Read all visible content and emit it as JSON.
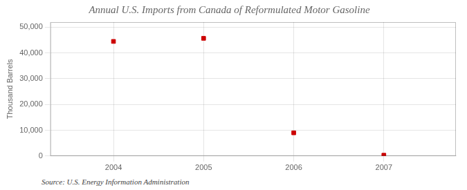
{
  "chart_data": {
    "type": "scatter",
    "title": "Annual U.S. Imports from Canada of Reformulated Motor Gasoline",
    "ylabel": "Thousand Barrels",
    "annotations": [
      "Source: U.S. Energy Information Administration"
    ],
    "x": [
      2004,
      2005,
      2006,
      2007
    ],
    "values": [
      44500,
      45700,
      9000,
      300
    ],
    "color": "#cc0000",
    "marker": "square",
    "xlim": [
      2003.3,
      2007.8
    ],
    "xticks": [
      2004,
      2005,
      2006,
      2007
    ],
    "ylim": [
      0,
      52000
    ],
    "yticks": [
      0,
      {
        "value": 10000,
        "label": "10,000"
      },
      {
        "value": 20000,
        "label": "20,000"
      },
      {
        "value": 30000,
        "label": "30,000"
      },
      {
        "value": 40000,
        "label": "40,000"
      },
      {
        "value": 50000,
        "label": "50,000"
      }
    ],
    "grid": true
  }
}
